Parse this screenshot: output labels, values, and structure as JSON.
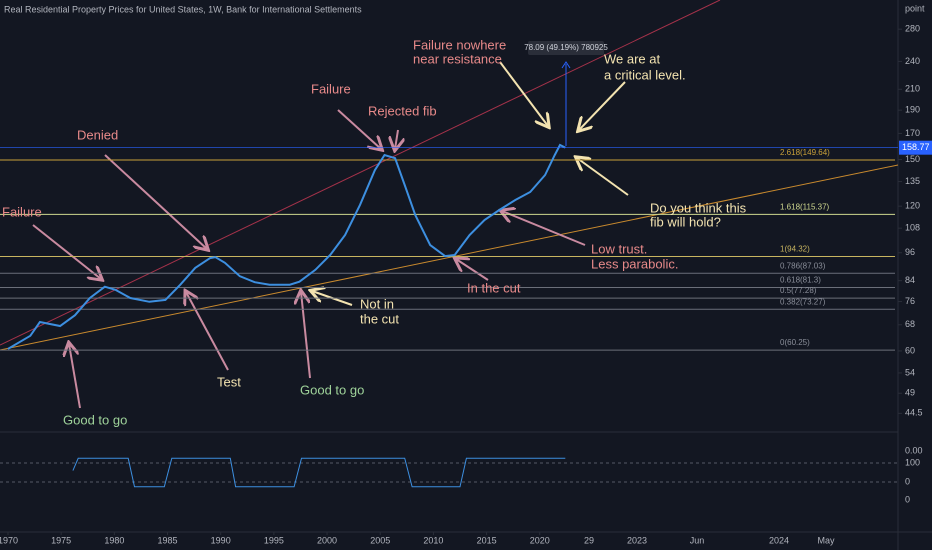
{
  "chart_data": [
    {
      "type": "line",
      "title": "Real Residential Property Prices for United States, 1W, Bank for International Settlements",
      "unit_label": "point",
      "color": "#3d8fe0",
      "log_scale": true,
      "grid": false,
      "x": [
        1970,
        1972.1,
        1973,
        1974.9,
        1976.3,
        1977.7,
        1979.1,
        1980.1,
        1981.5,
        1983.3,
        1984.8,
        1986.2,
        1987.6,
        1989,
        1989.5,
        1990.4,
        1991.8,
        1993.2,
        1994.6,
        1996.5,
        1997.4,
        1998.9,
        2000.3,
        2001.7,
        2003.1,
        2004.5,
        2005.4,
        2006.4,
        2007.3,
        2008.3,
        2009.7,
        2011.1,
        2012,
        2013.4,
        2014.8,
        2016.2,
        2017.7,
        2019.1,
        2020.5,
        2021.4,
        2021.9,
        2022.4
      ],
      "values": [
        60.6,
        64.5,
        68.9,
        67.6,
        71.2,
        77.3,
        81.6,
        80.4,
        77.3,
        75.9,
        76.6,
        82.4,
        89.3,
        93.6,
        94,
        91.5,
        85.8,
        83.4,
        82.4,
        82.4,
        83.6,
        88.5,
        95,
        104.5,
        120.7,
        142.6,
        153.2,
        151,
        132.8,
        115,
        99.6,
        94.5,
        95,
        104.5,
        112.3,
        117.8,
        123.6,
        128.4,
        139.3,
        153.2,
        160.8,
        158.8
      ],
      "xlim": [
        1969.25,
        2053.4
      ],
      "xticks": [
        1970,
        1975,
        1980,
        1985,
        1990,
        1995,
        2000,
        2005,
        2010,
        2015,
        2020
      ],
      "future_labels": [
        "29",
        "2023",
        "Jun",
        "2024",
        "May"
      ],
      "ylim": [
        40.7,
        322
      ],
      "yticks": [
        280,
        240,
        210,
        190,
        170,
        150,
        135,
        120,
        108,
        96,
        84,
        76,
        68,
        60,
        54,
        49,
        44.5
      ],
      "last_price": 158.77,
      "measure_label": "78.09 (49.19%) 780925",
      "fib_levels": [
        {
          "value": 149.64,
          "label": "2.618(149.64)",
          "color": "#c9a13a"
        },
        {
          "value": 115.37,
          "label": "1.618(115.37)",
          "color": "#cfd88f"
        },
        {
          "value": 94.32,
          "label": "1(94.32)",
          "color": "#c8b560"
        },
        {
          "value": 87.03,
          "label": "0.786(87.03)",
          "color": "#6b6f7a"
        },
        {
          "value": 81.3,
          "label": "0.618(81.3)",
          "color": "#6b6f7a"
        },
        {
          "value": 77.28,
          "label": "0.5(77.28)",
          "color": "#6b6f7a"
        },
        {
          "value": 73.27,
          "label": "0.382(73.27)",
          "color": "#6b6f7a"
        },
        {
          "value": 60.25,
          "label": "0(60.25)",
          "color": "#6b6f7a"
        }
      ],
      "annotations": [
        "Failure nowhere",
        "near resistance",
        "We are at",
        "a critical level.",
        "Failure",
        "Rejected fib",
        "Denied",
        "Failure",
        "Do you think this",
        "fib will hold?",
        "Low trust.",
        "Less parabolic.",
        "In the cut",
        "Not in",
        "the cut",
        "Test",
        "Good to go",
        "Good to go"
      ]
    },
    {
      "type": "line",
      "color": "#3d8fe0",
      "x": [
        1976.1,
        1976.6,
        1981.3,
        1981.9,
        1984.7,
        1985.4,
        1990.9,
        1991.4,
        1996.9,
        1997.6,
        2007.3,
        2008,
        2012.5,
        2013.1,
        2022.4
      ],
      "values": [
        60,
        125,
        125,
        -25,
        -25,
        125,
        125,
        -25,
        -25,
        125,
        125,
        -25,
        -25,
        125,
        125
      ],
      "ylim": [
        -253,
        237
      ],
      "yticks": [
        100,
        0
      ],
      "readouts": [
        "0.00",
        "0"
      ]
    }
  ]
}
